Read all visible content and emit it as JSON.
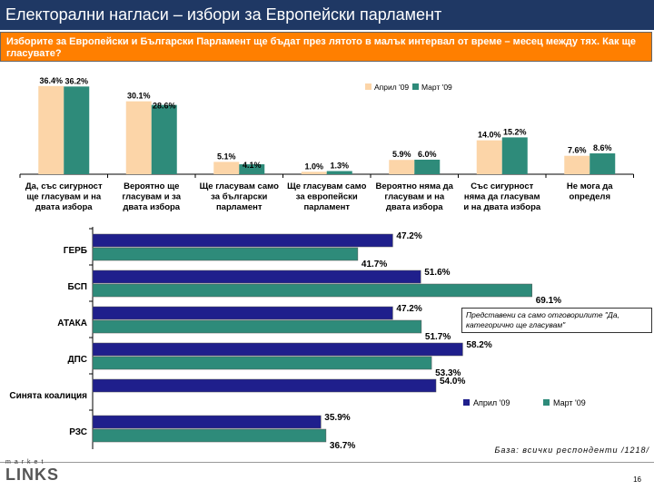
{
  "header": {
    "title": "Електорални нагласи – избори за Европейски парламент",
    "question": "Изборите за Европейски и Български Парламент ще бъдат през лятото в малък интервал от време – месец между тях. Как ще гласувате?"
  },
  "colors": {
    "april": "#fcd5a8",
    "march": "#2e8b7a",
    "april_hbar": "#1f1f8c",
    "march_hbar": "#2e8b7a",
    "title_bg": "#1f3864",
    "question_bg": "#ff7f00"
  },
  "chart_data": [
    {
      "type": "bar",
      "title": "",
      "categories": [
        "Да, със сигурност ще гласувам и на двата избора",
        "Вероятно ще гласувам и за двата избора",
        "Ще гласувам само за български парламент",
        "Ще гласувам само за европейски парламент",
        "Вероятно няма да гласувам и на двата избора",
        "Със сигурност няма да гласувам и на двата избора",
        "Не мога да определя"
      ],
      "category_lines": [
        [
          "Да, със сигурност",
          "ще гласувам и на",
          "двата избора"
        ],
        [
          "Вероятно ще",
          "гласувам и за",
          "двата избора"
        ],
        [
          "Ще гласувам само",
          "за български",
          "парламент"
        ],
        [
          "Ще гласувам само",
          "за европейски",
          "парламент"
        ],
        [
          "Вероятно няма да",
          "гласувам и на",
          "двата избора"
        ],
        [
          "Със сигурност",
          "няма да гласувам",
          "и на двата избора"
        ],
        [
          "Не мога да",
          "определя"
        ]
      ],
      "series": [
        {
          "name": "Април '09",
          "values": [
            36.4,
            30.1,
            5.1,
            1.0,
            5.9,
            14.0,
            7.6
          ],
          "labels": [
            "36.4%",
            "30.1%",
            "5.1%",
            "1.0%",
            "5.9%",
            "14.0%",
            "7.6%"
          ]
        },
        {
          "name": "Март '09",
          "values": [
            36.2,
            28.6,
            4.1,
            1.3,
            6.0,
            15.2,
            8.6
          ],
          "labels": [
            "36.2%",
            "28.6%",
            "4.1%",
            "1.3%",
            "6.0%",
            "15.2%",
            "8.6%"
          ]
        }
      ],
      "xlabel": "",
      "ylabel": "",
      "ylim": [
        0,
        40
      ],
      "legend": "top-right"
    },
    {
      "type": "bar",
      "orientation": "horizontal",
      "title": "",
      "categories": [
        "ГЕРБ",
        "БСП",
        "АТАКА",
        "ДПС",
        "Синята коалиция",
        "РЗС"
      ],
      "series": [
        {
          "name": "Април '09",
          "values": [
            47.2,
            51.6,
            47.2,
            58.2,
            54.0,
            35.9
          ],
          "labels": [
            "47.2%",
            "51.6%",
            "47.2%",
            "58.2%",
            "54.0%",
            "35.9%"
          ]
        },
        {
          "name": "Март '09",
          "values": [
            41.7,
            69.1,
            51.7,
            53.3,
            null,
            36.7
          ],
          "labels": [
            "41.7%",
            "69.1%",
            "51.7%",
            "53.3%",
            "",
            "36.7%"
          ]
        }
      ],
      "xlim": [
        0,
        100
      ],
      "legend": "bottom-right"
    }
  ],
  "note": "Представени са само отговорилите \"Да, категорично ще гласувам\"",
  "base": "База: всички респонденти /1218/",
  "footer": {
    "logo_top": "market",
    "logo_main": "LINKS",
    "page_number": "16"
  }
}
